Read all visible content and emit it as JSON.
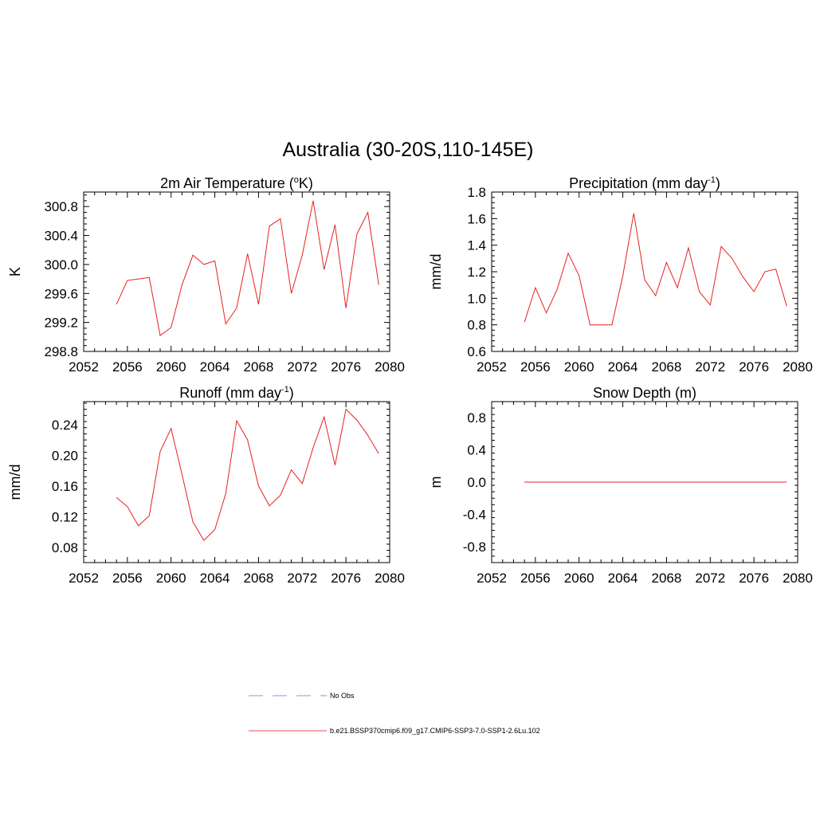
{
  "title": "Australia (30-20S,110-145E)",
  "legend": {
    "obs_label": "No Obs",
    "model_label": "b.e21.BSSP370cmip6.f09_g17.CMIP6-SSP3-7.0-SSP1-2.6Lu.102",
    "obs_color": "#a8a8e0",
    "model_color": "#f07070"
  },
  "series_color": "#e8201f",
  "chart_data": [
    {
      "type": "line",
      "title": "2m Air Temperature (",
      "title_sup": "o",
      "title_suffix": "K)",
      "ylabel": "K",
      "xlim": [
        2052,
        2080
      ],
      "ylim": [
        298.8,
        301.0
      ],
      "xticks": [
        2052,
        2056,
        2060,
        2064,
        2068,
        2072,
        2076,
        2080
      ],
      "yticks": [
        298.8,
        299.2,
        299.6,
        300.0,
        300.4,
        300.8
      ],
      "ytick_labels": [
        "298.8",
        "299.2",
        "299.6",
        "300.0",
        "300.4",
        "300.8"
      ],
      "x": [
        2055,
        2056,
        2057,
        2058,
        2059,
        2060,
        2061,
        2062,
        2063,
        2064,
        2065,
        2066,
        2067,
        2068,
        2069,
        2070,
        2071,
        2072,
        2073,
        2074,
        2075,
        2076,
        2077,
        2078,
        2079
      ],
      "values": [
        299.45,
        299.78,
        299.8,
        299.82,
        299.02,
        299.13,
        299.72,
        300.13,
        300.0,
        300.05,
        299.18,
        299.4,
        300.15,
        299.45,
        300.53,
        300.63,
        299.6,
        300.13,
        300.88,
        299.93,
        300.55,
        299.4,
        300.42,
        300.72,
        299.72
      ]
    },
    {
      "type": "line",
      "title": "Precipitation (mm day",
      "title_sup": "-1",
      "title_suffix": ")",
      "ylabel": "mm/d",
      "xlim": [
        2052,
        2080
      ],
      "ylim": [
        0.6,
        1.8
      ],
      "xticks": [
        2052,
        2056,
        2060,
        2064,
        2068,
        2072,
        2076,
        2080
      ],
      "yticks": [
        0.6,
        0.8,
        1.0,
        1.2,
        1.4,
        1.6,
        1.8
      ],
      "ytick_labels": [
        "0.6",
        "0.8",
        "1.0",
        "1.2",
        "1.4",
        "1.6",
        "1.8"
      ],
      "x": [
        2055,
        2056,
        2057,
        2058,
        2059,
        2060,
        2061,
        2062,
        2063,
        2064,
        2065,
        2066,
        2067,
        2068,
        2069,
        2070,
        2071,
        2072,
        2073,
        2074,
        2075,
        2076,
        2077,
        2078,
        2079
      ],
      "values": [
        0.82,
        1.08,
        0.89,
        1.07,
        1.34,
        1.17,
        0.8,
        0.8,
        0.8,
        1.17,
        1.64,
        1.14,
        1.02,
        1.27,
        1.08,
        1.38,
        1.05,
        0.95,
        1.39,
        1.3,
        1.16,
        1.05,
        1.2,
        1.22,
        0.94
      ]
    },
    {
      "type": "line",
      "title": "Runoff (mm day",
      "title_sup": "-1",
      "title_suffix": ")",
      "ylabel": "mm/d",
      "xlim": [
        2052,
        2080
      ],
      "ylim": [
        0.06,
        0.27
      ],
      "xticks": [
        2052,
        2056,
        2060,
        2064,
        2068,
        2072,
        2076,
        2080
      ],
      "yticks": [
        0.08,
        0.12,
        0.16,
        0.2,
        0.24
      ],
      "ytick_labels": [
        "0.08",
        "0.12",
        "0.16",
        "0.20",
        "0.24"
      ],
      "x": [
        2055,
        2056,
        2057,
        2058,
        2059,
        2060,
        2061,
        2062,
        2063,
        2064,
        2065,
        2066,
        2067,
        2068,
        2069,
        2070,
        2071,
        2072,
        2073,
        2074,
        2075,
        2076,
        2077,
        2078,
        2079
      ],
      "values": [
        0.145,
        0.133,
        0.108,
        0.121,
        0.205,
        0.235,
        0.175,
        0.113,
        0.089,
        0.103,
        0.15,
        0.245,
        0.22,
        0.16,
        0.134,
        0.148,
        0.181,
        0.163,
        0.21,
        0.25,
        0.187,
        0.26,
        0.246,
        0.226,
        0.202
      ]
    },
    {
      "type": "line",
      "title": "Snow Depth (m)",
      "title_sup": "",
      "title_suffix": "",
      "ylabel": "m",
      "xlim": [
        2052,
        2080
      ],
      "ylim": [
        -1.0,
        1.0
      ],
      "xticks": [
        2052,
        2056,
        2060,
        2064,
        2068,
        2072,
        2076,
        2080
      ],
      "yticks": [
        -0.8,
        -0.4,
        0.0,
        0.4,
        0.8
      ],
      "ytick_labels": [
        "-0.8",
        "-0.4",
        "0.0",
        "0.4",
        "0.8"
      ],
      "x": [
        2055,
        2056,
        2057,
        2058,
        2059,
        2060,
        2061,
        2062,
        2063,
        2064,
        2065,
        2066,
        2067,
        2068,
        2069,
        2070,
        2071,
        2072,
        2073,
        2074,
        2075,
        2076,
        2077,
        2078,
        2079
      ],
      "values": [
        0,
        0,
        0,
        0,
        0,
        0,
        0,
        0,
        0,
        0,
        0,
        0,
        0,
        0,
        0,
        0,
        0,
        0,
        0,
        0,
        0,
        0,
        0,
        0,
        0
      ]
    }
  ]
}
